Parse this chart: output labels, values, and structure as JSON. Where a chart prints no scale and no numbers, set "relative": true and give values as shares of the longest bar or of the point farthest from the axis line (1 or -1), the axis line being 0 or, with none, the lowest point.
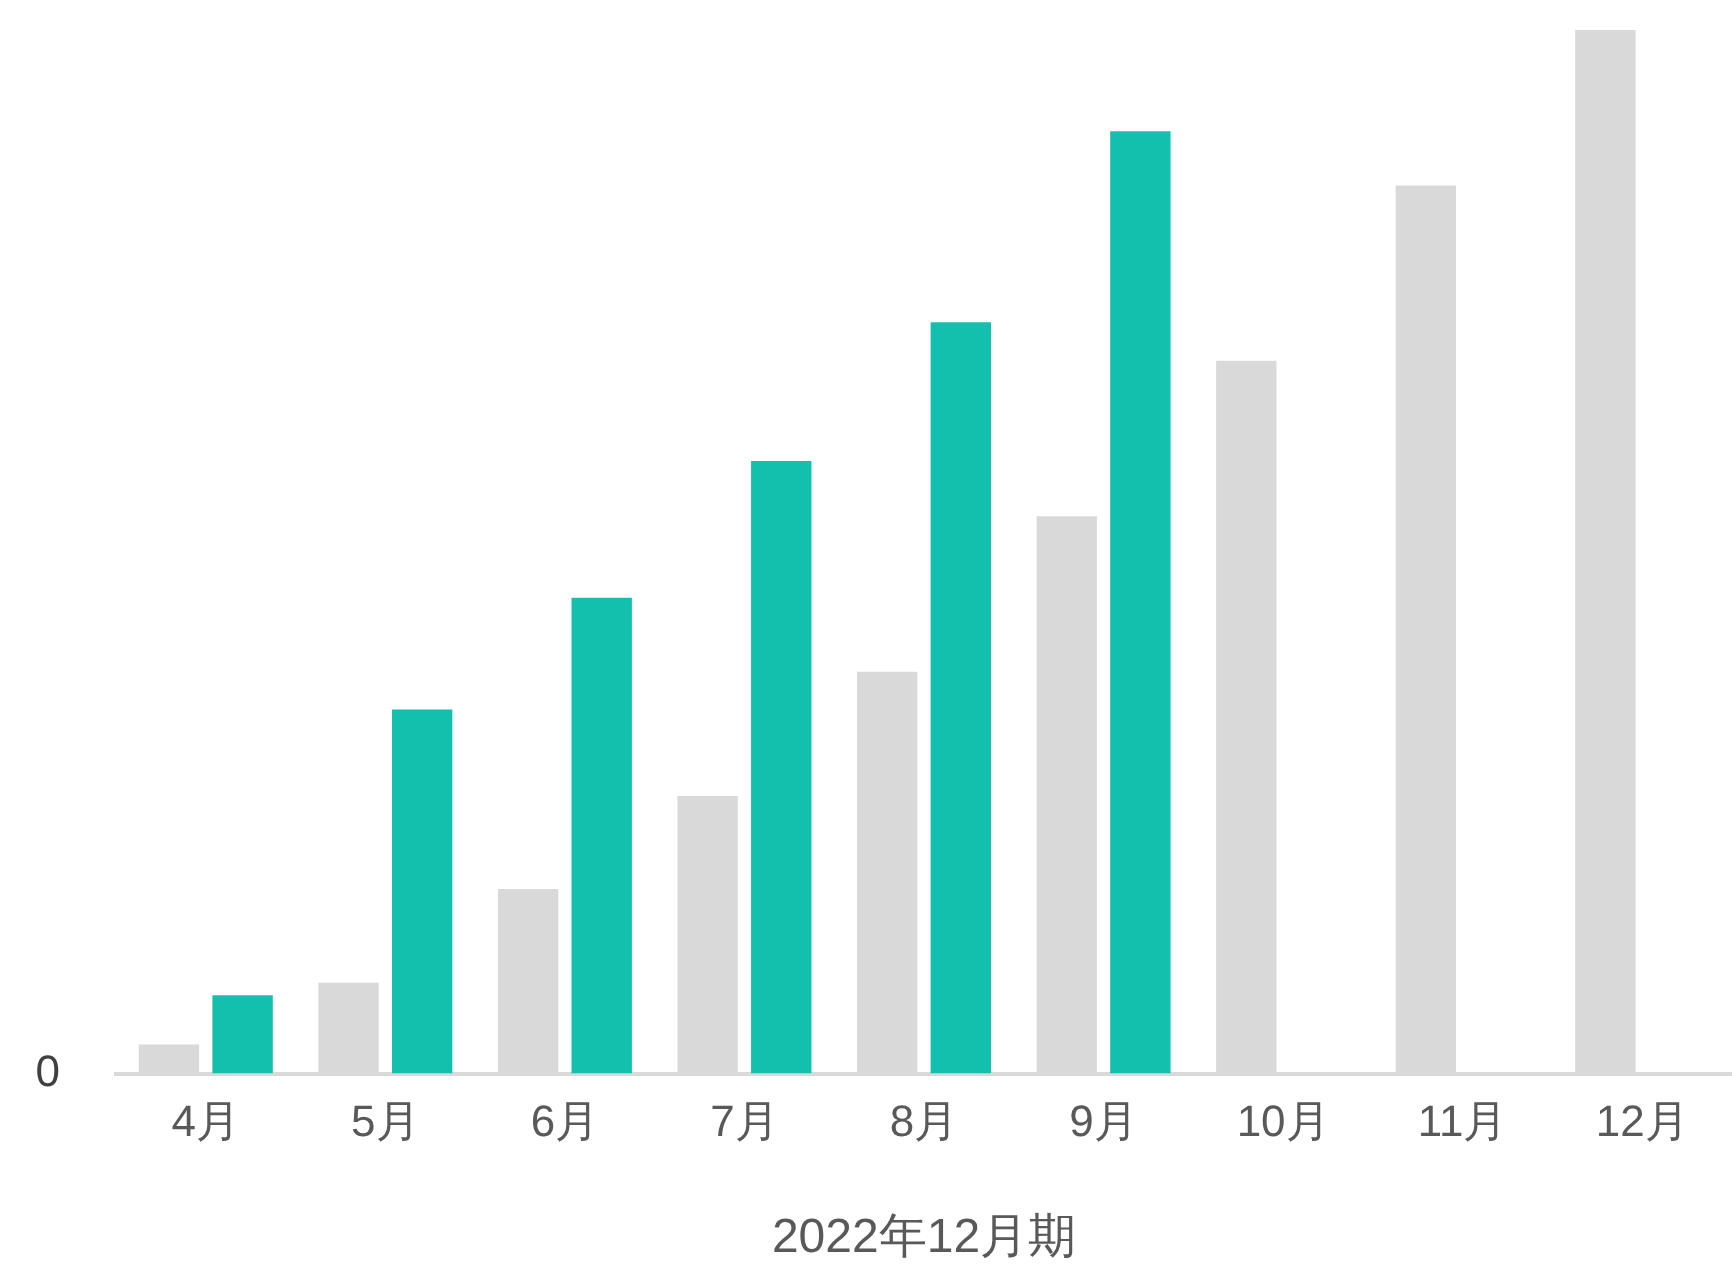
{
  "chart_data": {
    "type": "bar",
    "relative": true,
    "xlabel": "2022年12月期",
    "categories": [
      "4月",
      "5月",
      "6月",
      "7月",
      "8月",
      "9月",
      "10月",
      "11月",
      "12月"
    ],
    "series": [
      {
        "color": "#d9d9d9",
        "values": [
          0.028,
          0.087,
          0.177,
          0.266,
          0.385,
          0.534,
          0.683,
          0.851,
          1
        ]
      },
      {
        "color": "#13bfad",
        "values": [
          0.075,
          0.349,
          0.456,
          0.587,
          0.72,
          0.903,
          null,
          null,
          null
        ]
      }
    ],
    "annotations": [
      "0"
    ],
    "grid": false,
    "legend": false
  }
}
